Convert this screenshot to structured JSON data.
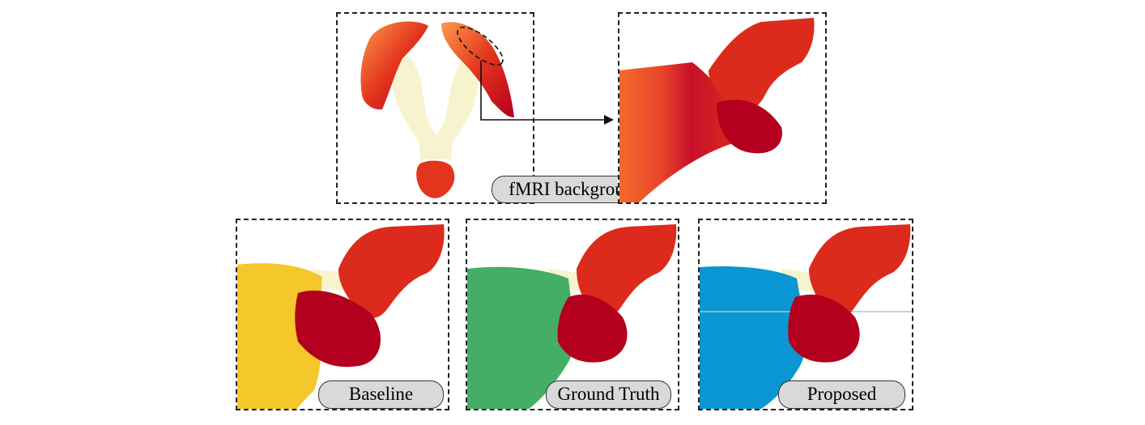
{
  "labels": {
    "background": "fMRI background",
    "baseline": "Baseline",
    "ground_truth": "Ground Truth",
    "proposed": "Proposed"
  },
  "colors": {
    "fiber_dark": "#b3001e",
    "fiber_red": "#dc2b1c",
    "fiber_orange": "#f26a2a",
    "brain_background": "#f7f3cf",
    "baseline_cluster": "#f4c72b",
    "ground_truth_cluster": "#44ae64",
    "proposed_cluster": "#0a96d2",
    "label_pill": "#d9d9d9"
  }
}
